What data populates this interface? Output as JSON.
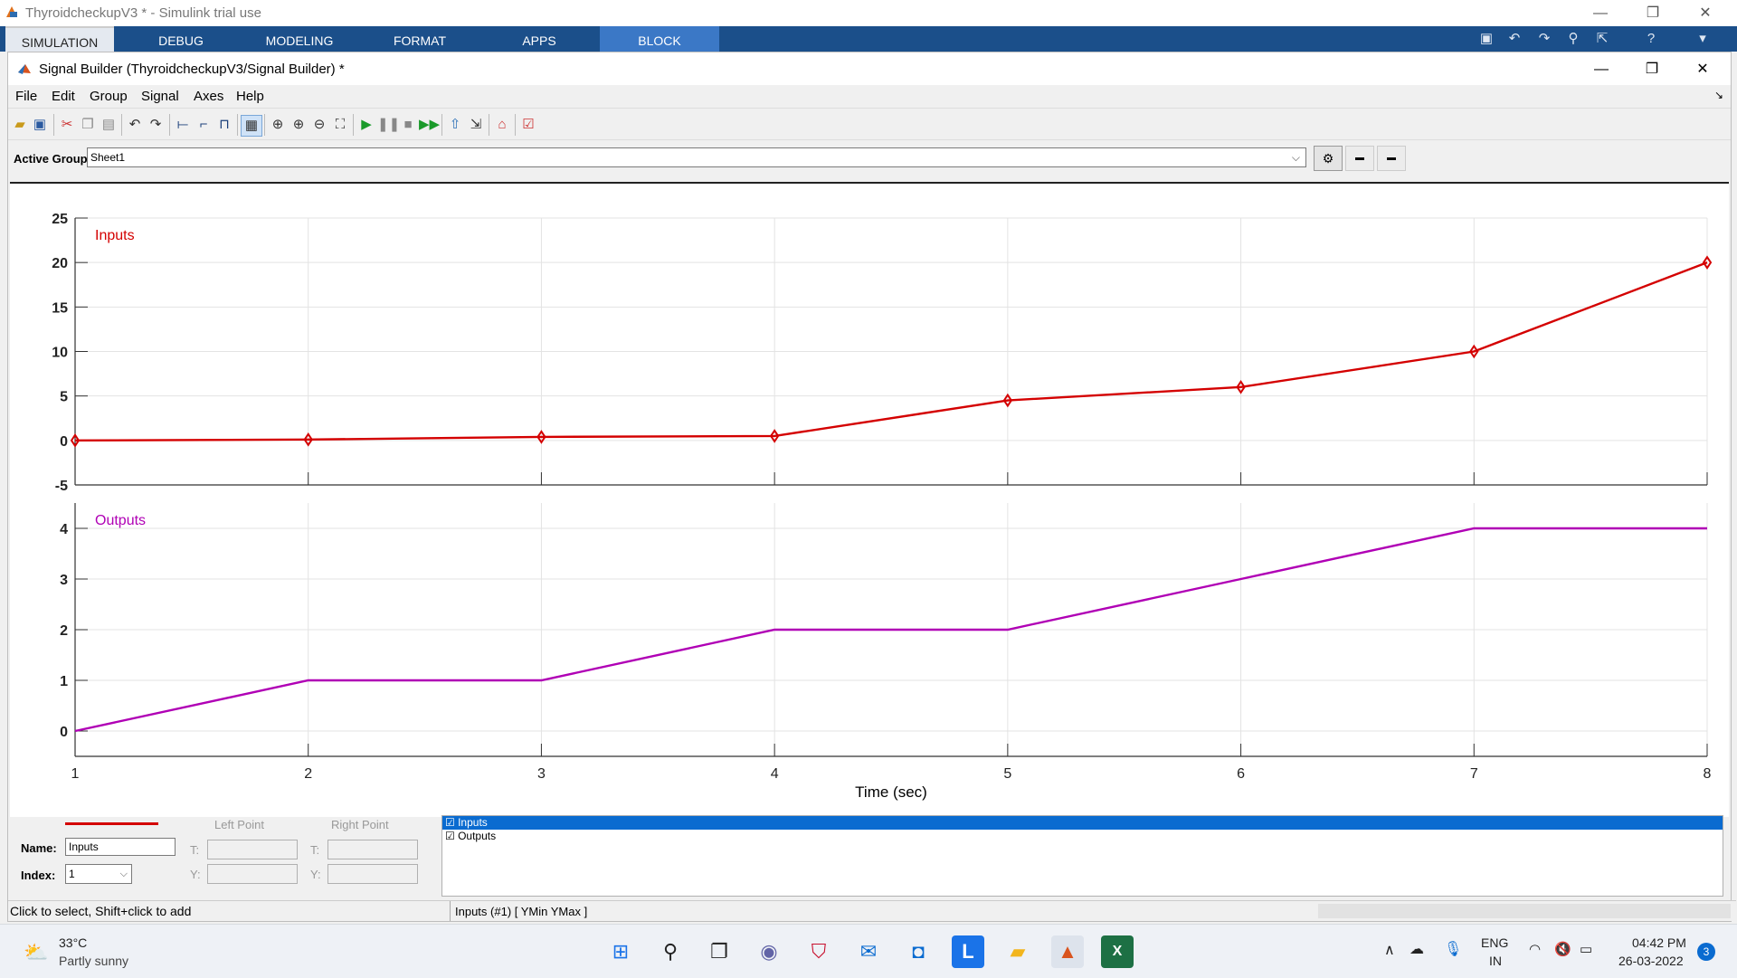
{
  "window": {
    "title": "ThyroidcheckupV3 * - Simulink trial use",
    "controls": [
      "—",
      "❐",
      "✕"
    ]
  },
  "ribbon": {
    "tabs": [
      "SIMULATION",
      "DEBUG",
      "MODELING",
      "FORMAT",
      "APPS",
      "BLOCK"
    ]
  },
  "signal_builder": {
    "title": "Signal Builder (ThyroidcheckupV3/Signal Builder) *",
    "menu": [
      "File",
      "Edit",
      "Group",
      "Signal",
      "Axes",
      "Help"
    ],
    "active_group_label": "Active Group:",
    "active_group_value": "Sheet1"
  },
  "chart_data": [
    {
      "type": "line",
      "title": "Inputs",
      "color": "#d40000",
      "markers": true,
      "x": [
        1,
        2,
        3,
        4,
        5,
        6,
        7,
        8
      ],
      "y": [
        0,
        0.1,
        0.4,
        0.5,
        4.5,
        6,
        10,
        20
      ],
      "ylim": [
        -5,
        25
      ],
      "yticks": [
        "25",
        "20",
        "15",
        "10",
        "5",
        "0",
        "-5"
      ],
      "xlim": [
        1,
        8
      ],
      "grid": true
    },
    {
      "type": "line",
      "title": "Outputs",
      "color": "#b000b5",
      "markers": false,
      "x": [
        1,
        2,
        3,
        4,
        5,
        6,
        7,
        8
      ],
      "y": [
        0,
        1,
        1,
        2,
        2,
        3,
        4,
        4
      ],
      "ylim": [
        -0.5,
        4.5
      ],
      "yticks": [
        "4",
        "3",
        "2",
        "1",
        "0"
      ],
      "xlim": [
        1,
        8
      ],
      "xticks": [
        "1",
        "2",
        "3",
        "4",
        "5",
        "6",
        "7",
        "8"
      ],
      "xlabel": "Time (sec)",
      "grid": true
    }
  ],
  "editor": {
    "left_point": "Left Point",
    "right_point": "Right Point",
    "name_label": "Name:",
    "name_value": "Inputs",
    "index_label": "Index:",
    "index_value": "1",
    "t_label": "T:",
    "y_label": "Y:",
    "signals": [
      "☑ Inputs",
      "☑ Outputs"
    ]
  },
  "status": {
    "hint": "Click to select, Shift+click to add",
    "info": "Inputs (#1)  [ YMin YMax ]"
  },
  "taskbar": {
    "temperature": "33°C",
    "weather": "Partly sunny",
    "lang1": "ENG",
    "lang2": "IN",
    "time": "04:42 PM",
    "date": "26-03-2022",
    "notif": "3"
  }
}
